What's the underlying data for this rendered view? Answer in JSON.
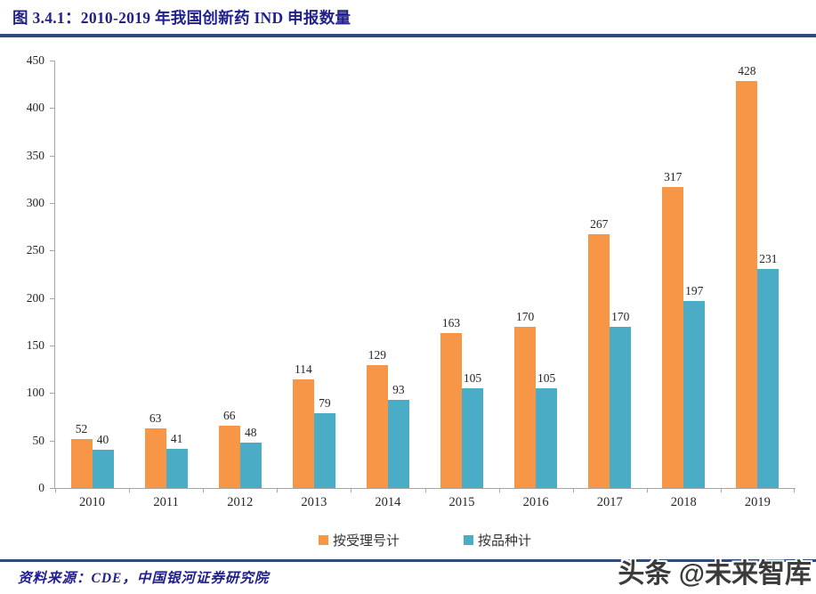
{
  "header": {
    "title": "图 3.4.1：2010-2019 年我国创新药 IND 申报数量"
  },
  "chart_data": {
    "type": "bar",
    "title": "图 3.4.1：2010-2019 年我国创新药 IND 申报数量",
    "categories": [
      "2010",
      "2011",
      "2012",
      "2013",
      "2014",
      "2015",
      "2016",
      "2017",
      "2018",
      "2019"
    ],
    "series": [
      {
        "name": "按受理号计",
        "color": "#F79646",
        "values": [
          52,
          63,
          66,
          114,
          129,
          163,
          170,
          267,
          317,
          428
        ]
      },
      {
        "name": "按品种计",
        "color": "#4BACC6",
        "values": [
          40,
          41,
          48,
          79,
          93,
          105,
          105,
          170,
          197,
          231
        ]
      }
    ],
    "xlabel": "",
    "ylabel": "",
    "ylim": [
      0,
      450
    ],
    "ytick_step": 50,
    "grid": false,
    "legend_position": "bottom",
    "data_labels": true
  },
  "footer": {
    "source": "资料来源：CDE，中国银河证券研究院"
  },
  "watermark": {
    "text": "头条 @未来智库"
  },
  "colors": {
    "bar_primary": "#F79646",
    "bar_secondary": "#4BACC6",
    "title_navy": "#21208C",
    "rule_navy": "#2E4C77",
    "axis_gray": "#A6A6A6",
    "text_dark": "#262626"
  }
}
